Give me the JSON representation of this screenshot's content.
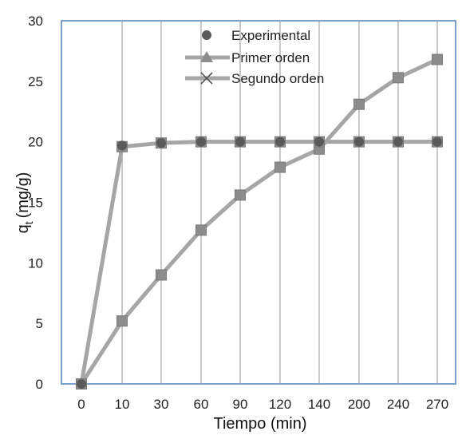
{
  "chart_data": {
    "type": "line",
    "categories": [
      "0",
      "10",
      "30",
      "60",
      "90",
      "120",
      "140",
      "200",
      "240",
      "270"
    ],
    "series": [
      {
        "name": "Experimental",
        "values": [
          0,
          19.7,
          19.9,
          20.0,
          20.0,
          20.0,
          20.0,
          20.0,
          20.0,
          20.0
        ],
        "marker": "circle"
      },
      {
        "name": "Primer orden",
        "values": [
          0,
          5.2,
          9.0,
          12.7,
          15.6,
          17.9,
          19.4,
          23.1,
          25.3,
          26.8
        ],
        "marker": "square-triangle"
      },
      {
        "name": "Segundo orden",
        "values": [
          0,
          19.6,
          19.9,
          20.0,
          20.0,
          20.0,
          20.0,
          20.0,
          20.0,
          20.0
        ],
        "marker": "square-x"
      }
    ],
    "yticks": [
      "0",
      "5",
      "10",
      "15",
      "20",
      "25",
      "30"
    ],
    "ylim": [
      0,
      30
    ],
    "xlabel": "Tiempo (min)",
    "ylabel_main": "q",
    "ylabel_sub": "t",
    "ylabel_unit": "(mg/g)",
    "grid": "vertical",
    "legend_position": "top-center",
    "colors": {
      "line": "#a6a6a6",
      "marker": "#8c8c8c",
      "dot": "#595959",
      "plot_border": "#4f81bd",
      "grid": "#a6a6a6"
    }
  }
}
